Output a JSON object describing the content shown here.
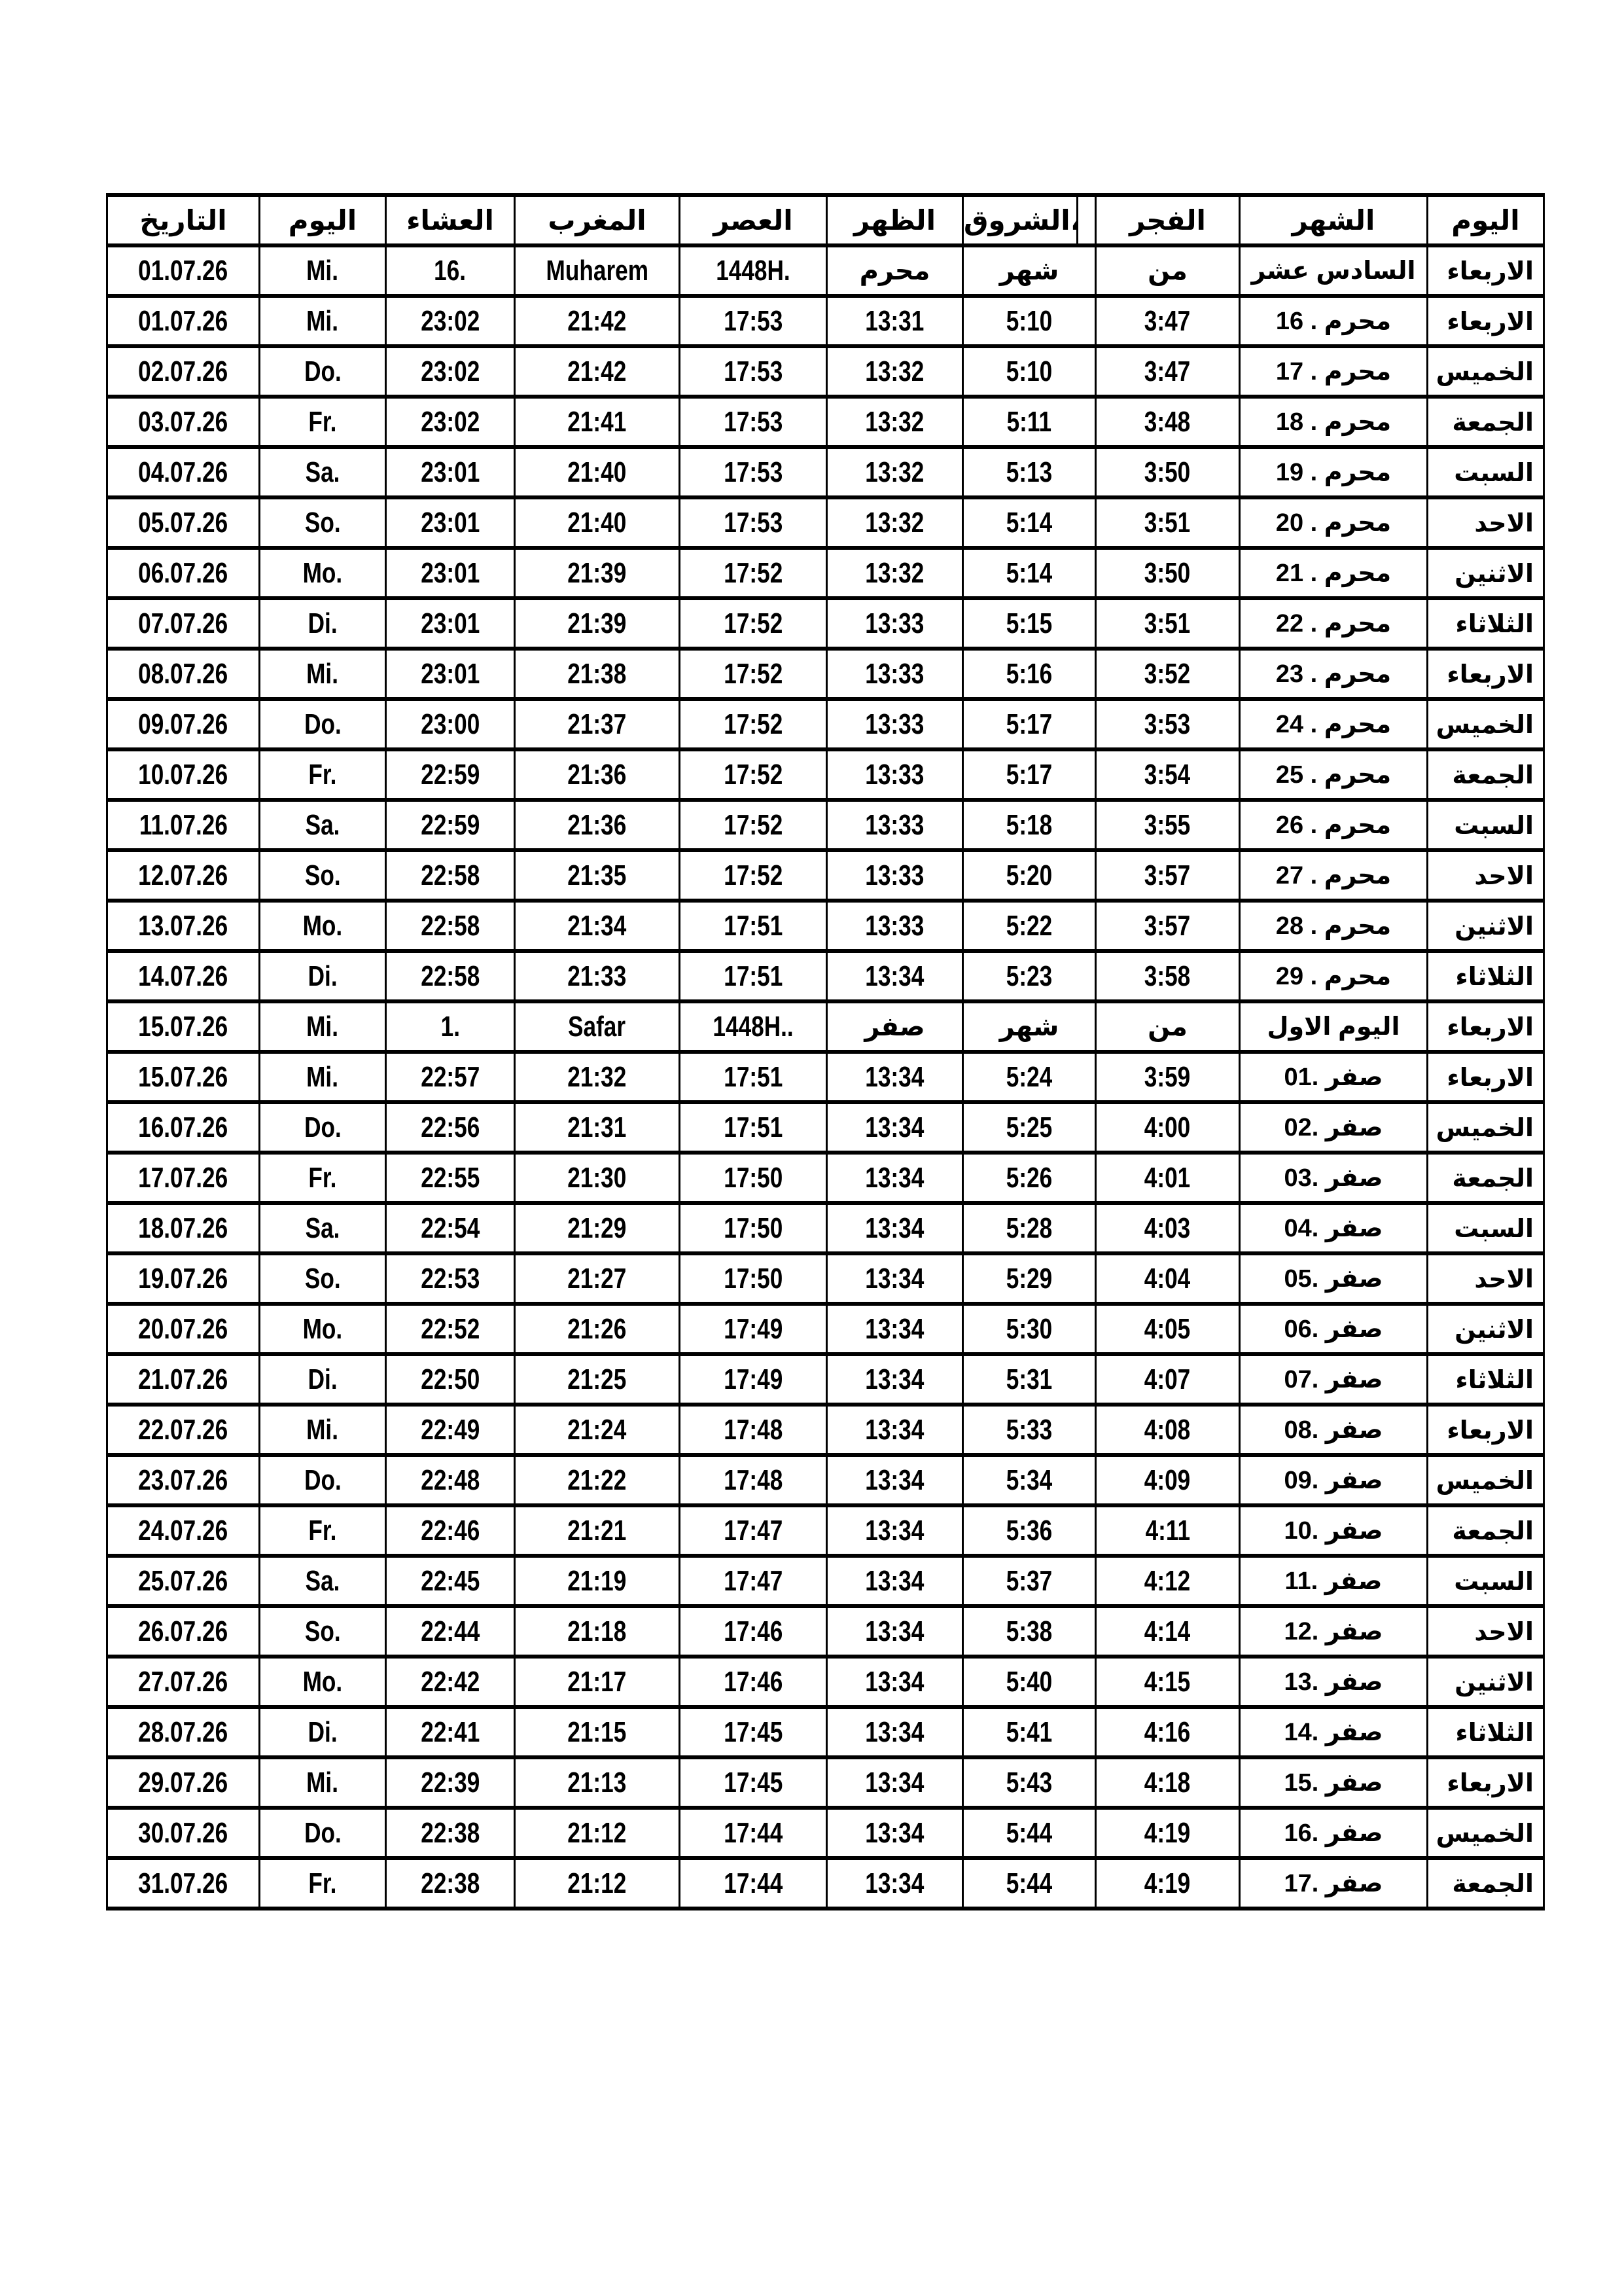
{
  "accent_colors": {
    "text": "#000000",
    "background": "#ffffff",
    "border": "#000000"
  },
  "table": {
    "headers": [
      "التاريخ",
      "اليوم",
      "العشاء",
      "المغرب",
      "العصر",
      "الظهر",
      "الشروق،",
      "",
      "الفجر",
      "الشهر",
      "اليوم"
    ],
    "rows": [
      {
        "type": "month-intro",
        "date": "01.07.26",
        "day": "Mi.",
        "isha": "16.",
        "maghrib": "Muharem",
        "asr": "1448H.",
        "dhuhr": "محرم",
        "shuruq": "شهر",
        "fajr": "من",
        "month": "السادس عشر",
        "weekday": "الاربعاء"
      },
      {
        "type": "times",
        "date": "01.07.26",
        "day": "Mi.",
        "isha": "23:02",
        "maghrib": "21:42",
        "asr": "17:53",
        "dhuhr": "13:31",
        "shuruq": "5:10",
        "fajr": "3:47",
        "month": "16 . محرم",
        "weekday": "الاربعاء"
      },
      {
        "type": "times",
        "date": "02.07.26",
        "day": "Do.",
        "isha": "23:02",
        "maghrib": "21:42",
        "asr": "17:53",
        "dhuhr": "13:32",
        "shuruq": "5:10",
        "fajr": "3:47",
        "month": "17 . محرم",
        "weekday": "الخميس"
      },
      {
        "type": "times",
        "date": "03.07.26",
        "day": "Fr.",
        "isha": "23:02",
        "maghrib": "21:41",
        "asr": "17:53",
        "dhuhr": "13:32",
        "shuruq": "5:11",
        "fajr": "3:48",
        "month": "18 . محرم",
        "weekday": "الجمعة"
      },
      {
        "type": "times",
        "date": "04.07.26",
        "day": "Sa.",
        "isha": "23:01",
        "maghrib": "21:40",
        "asr": "17:53",
        "dhuhr": "13:32",
        "shuruq": "5:13",
        "fajr": "3:50",
        "month": "19 . محرم",
        "weekday": "السبت"
      },
      {
        "type": "times",
        "date": "05.07.26",
        "day": "So.",
        "isha": "23:01",
        "maghrib": "21:40",
        "asr": "17:53",
        "dhuhr": "13:32",
        "shuruq": "5:14",
        "fajr": "3:51",
        "month": "20 . محرم",
        "weekday": "الاحد"
      },
      {
        "type": "times",
        "date": "06.07.26",
        "day": "Mo.",
        "isha": "23:01",
        "maghrib": "21:39",
        "asr": "17:52",
        "dhuhr": "13:32",
        "shuruq": "5:14",
        "fajr": "3:50",
        "month": "21 . محرم",
        "weekday": "الاثنين"
      },
      {
        "type": "times",
        "date": "07.07.26",
        "day": "Di.",
        "isha": "23:01",
        "maghrib": "21:39",
        "asr": "17:52",
        "dhuhr": "13:33",
        "shuruq": "5:15",
        "fajr": "3:51",
        "month": "22 . محرم",
        "weekday": "الثلاثاء"
      },
      {
        "type": "times",
        "date": "08.07.26",
        "day": "Mi.",
        "isha": "23:01",
        "maghrib": "21:38",
        "asr": "17:52",
        "dhuhr": "13:33",
        "shuruq": "5:16",
        "fajr": "3:52",
        "month": "23 . محرم",
        "weekday": "الاربعاء"
      },
      {
        "type": "times",
        "date": "09.07.26",
        "day": "Do.",
        "isha": "23:00",
        "maghrib": "21:37",
        "asr": "17:52",
        "dhuhr": "13:33",
        "shuruq": "5:17",
        "fajr": "3:53",
        "month": "24 . محرم",
        "weekday": "الخميس"
      },
      {
        "type": "times",
        "date": "10.07.26",
        "day": "Fr.",
        "isha": "22:59",
        "maghrib": "21:36",
        "asr": "17:52",
        "dhuhr": "13:33",
        "shuruq": "5:17",
        "fajr": "3:54",
        "month": "25 . محرم",
        "weekday": "الجمعة"
      },
      {
        "type": "times",
        "date": "11.07.26",
        "day": "Sa.",
        "isha": "22:59",
        "maghrib": "21:36",
        "asr": "17:52",
        "dhuhr": "13:33",
        "shuruq": "5:18",
        "fajr": "3:55",
        "month": "26 . محرم",
        "weekday": "السبت"
      },
      {
        "type": "times",
        "date": "12.07.26",
        "day": "So.",
        "isha": "22:58",
        "maghrib": "21:35",
        "asr": "17:52",
        "dhuhr": "13:33",
        "shuruq": "5:20",
        "fajr": "3:57",
        "month": "27 . محرم",
        "weekday": "الاحد"
      },
      {
        "type": "times",
        "date": "13.07.26",
        "day": "Mo.",
        "isha": "22:58",
        "maghrib": "21:34",
        "asr": "17:51",
        "dhuhr": "13:33",
        "shuruq": "5:22",
        "fajr": "3:57",
        "month": "28 . محرم",
        "weekday": "الاثنين"
      },
      {
        "type": "times",
        "date": "14.07.26",
        "day": "Di.",
        "isha": "22:58",
        "maghrib": "21:33",
        "asr": "17:51",
        "dhuhr": "13:34",
        "shuruq": "5:23",
        "fajr": "3:58",
        "month": "29 . محرم",
        "weekday": "الثلاثاء"
      },
      {
        "type": "month-intro",
        "date": "15.07.26",
        "day": "Mi.",
        "isha": "1.",
        "maghrib": "Safar",
        "asr": "1448H..",
        "dhuhr": "صفر",
        "shuruq": "شهر",
        "fajr": "من",
        "month": "اليوم الاول",
        "weekday": "الاربعاء"
      },
      {
        "type": "times",
        "date": "15.07.26",
        "day": "Mi.",
        "isha": "22:57",
        "maghrib": "21:32",
        "asr": "17:51",
        "dhuhr": "13:34",
        "shuruq": "5:24",
        "fajr": "3:59",
        "month": "01. صفر",
        "weekday": "الاربعاء"
      },
      {
        "type": "times",
        "date": "16.07.26",
        "day": "Do.",
        "isha": "22:56",
        "maghrib": "21:31",
        "asr": "17:51",
        "dhuhr": "13:34",
        "shuruq": "5:25",
        "fajr": "4:00",
        "month": "02. صفر",
        "weekday": "الخميس"
      },
      {
        "type": "times",
        "date": "17.07.26",
        "day": "Fr.",
        "isha": "22:55",
        "maghrib": "21:30",
        "asr": "17:50",
        "dhuhr": "13:34",
        "shuruq": "5:26",
        "fajr": "4:01",
        "month": "03. صفر",
        "weekday": "الجمعة"
      },
      {
        "type": "times",
        "date": "18.07.26",
        "day": "Sa.",
        "isha": "22:54",
        "maghrib": "21:29",
        "asr": "17:50",
        "dhuhr": "13:34",
        "shuruq": "5:28",
        "fajr": "4:03",
        "month": "04. صفر",
        "weekday": "السبت"
      },
      {
        "type": "times",
        "date": "19.07.26",
        "day": "So.",
        "isha": "22:53",
        "maghrib": "21:27",
        "asr": "17:50",
        "dhuhr": "13:34",
        "shuruq": "5:29",
        "fajr": "4:04",
        "month": "05. صفر",
        "weekday": "الاحد"
      },
      {
        "type": "times",
        "date": "20.07.26",
        "day": "Mo.",
        "isha": "22:52",
        "maghrib": "21:26",
        "asr": "17:49",
        "dhuhr": "13:34",
        "shuruq": "5:30",
        "fajr": "4:05",
        "month": "06. صفر",
        "weekday": "الاثنين"
      },
      {
        "type": "times",
        "date": "21.07.26",
        "day": "Di.",
        "isha": "22:50",
        "maghrib": "21:25",
        "asr": "17:49",
        "dhuhr": "13:34",
        "shuruq": "5:31",
        "fajr": "4:07",
        "month": "07. صفر",
        "weekday": "الثلاثاء"
      },
      {
        "type": "times",
        "date": "22.07.26",
        "day": "Mi.",
        "isha": "22:49",
        "maghrib": "21:24",
        "asr": "17:48",
        "dhuhr": "13:34",
        "shuruq": "5:33",
        "fajr": "4:08",
        "month": "08. صفر",
        "weekday": "الاربعاء"
      },
      {
        "type": "times",
        "date": "23.07.26",
        "day": "Do.",
        "isha": "22:48",
        "maghrib": "21:22",
        "asr": "17:48",
        "dhuhr": "13:34",
        "shuruq": "5:34",
        "fajr": "4:09",
        "month": "09. صفر",
        "weekday": "الخميس"
      },
      {
        "type": "times",
        "date": "24.07.26",
        "day": "Fr.",
        "isha": "22:46",
        "maghrib": "21:21",
        "asr": "17:47",
        "dhuhr": "13:34",
        "shuruq": "5:36",
        "fajr": "4:11",
        "month": "10. صفر",
        "weekday": "الجمعة"
      },
      {
        "type": "times",
        "date": "25.07.26",
        "day": "Sa.",
        "isha": "22:45",
        "maghrib": "21:19",
        "asr": "17:47",
        "dhuhr": "13:34",
        "shuruq": "5:37",
        "fajr": "4:12",
        "month": "11. صفر",
        "weekday": "السبت"
      },
      {
        "type": "times",
        "date": "26.07.26",
        "day": "So.",
        "isha": "22:44",
        "maghrib": "21:18",
        "asr": "17:46",
        "dhuhr": "13:34",
        "shuruq": "5:38",
        "fajr": "4:14",
        "month": "12. صفر",
        "weekday": "الاحد"
      },
      {
        "type": "times",
        "date": "27.07.26",
        "day": "Mo.",
        "isha": "22:42",
        "maghrib": "21:17",
        "asr": "17:46",
        "dhuhr": "13:34",
        "shuruq": "5:40",
        "fajr": "4:15",
        "month": "13. صفر",
        "weekday": "الاثنين"
      },
      {
        "type": "times",
        "date": "28.07.26",
        "day": "Di.",
        "isha": "22:41",
        "maghrib": "21:15",
        "asr": "17:45",
        "dhuhr": "13:34",
        "shuruq": "5:41",
        "fajr": "4:16",
        "month": "14. صفر",
        "weekday": "الثلاثاء"
      },
      {
        "type": "times",
        "date": "29.07.26",
        "day": "Mi.",
        "isha": "22:39",
        "maghrib": "21:13",
        "asr": "17:45",
        "dhuhr": "13:34",
        "shuruq": "5:43",
        "fajr": "4:18",
        "month": "15. صفر",
        "weekday": "الاربعاء"
      },
      {
        "type": "times",
        "date": "30.07.26",
        "day": "Do.",
        "isha": "22:38",
        "maghrib": "21:12",
        "asr": "17:44",
        "dhuhr": "13:34",
        "shuruq": "5:44",
        "fajr": "4:19",
        "month": "16. صفر",
        "weekday": "الخميس"
      },
      {
        "type": "times",
        "date": "31.07.26",
        "day": "Fr.",
        "isha": "22:38",
        "maghrib": "21:12",
        "asr": "17:44",
        "dhuhr": "13:34",
        "shuruq": "5:44",
        "fajr": "4:19",
        "month": "17. صفر",
        "weekday": "الجمعة"
      }
    ]
  }
}
